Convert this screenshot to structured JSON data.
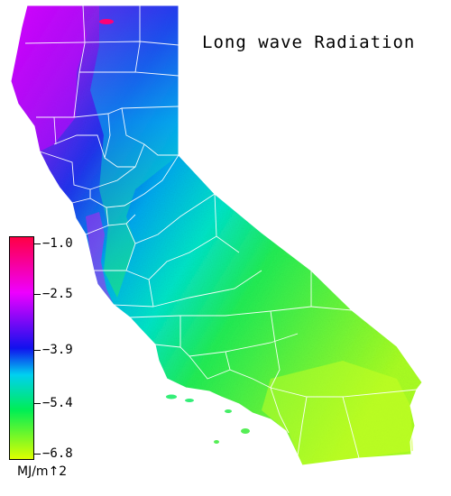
{
  "title": "Long wave Radiation",
  "legend": {
    "units": "MJ/m↑2",
    "ticks": [
      "−1.0",
      "−2.5",
      "−3.9",
      "−5.4",
      "−6.8"
    ],
    "colors": {
      "max": "#ff0044",
      "high": "#ee00ff",
      "mid_high": "#1111ee",
      "mid": "#00d0f0",
      "mid_low": "#00ee55",
      "low": "#ddff00"
    }
  }
}
